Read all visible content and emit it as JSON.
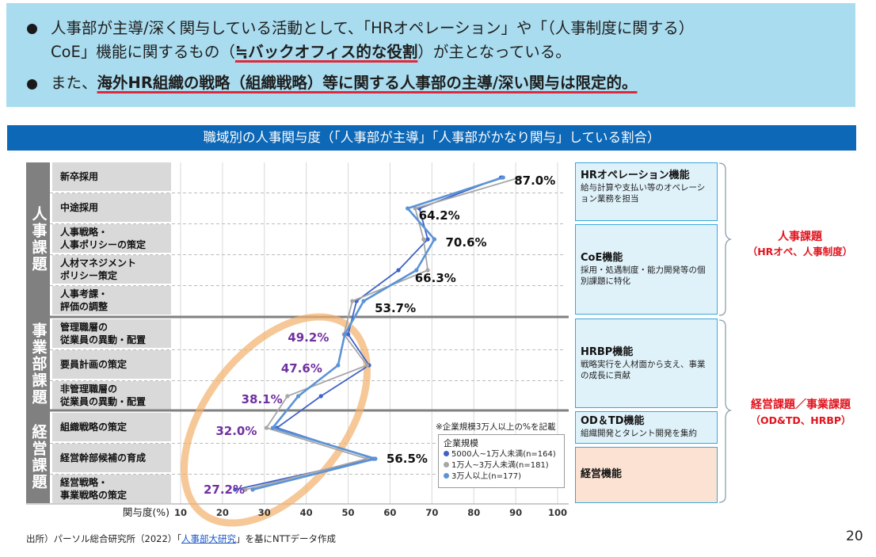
{
  "summary": {
    "bullet1_line1": "人事部が主導/深く関与している活動として、「HRオペレーション」や「（人事制度に関する）",
    "bullet1_line2_pre": "CoE」機能に関するもの（",
    "bullet1_line2_em": "≒バックオフィス的な役割",
    "bullet1_line2_post": "）が主となっている。",
    "bullet2_pre": "また、",
    "bullet2_em": "海外HR組織の戦略（組織戦略）等に関する人事部の主導/深い関与は限定的。"
  },
  "banner_title": "職域別の人事関与度（「人事部が主導」「人事部がかなり関与」している割合）",
  "groups": {
    "hr": "人事課題",
    "business": "事業部課題",
    "management": "経営課題"
  },
  "categories": [
    {
      "label": "新卒採用"
    },
    {
      "label": "中途採用"
    },
    {
      "label": "人事戦略・\n人事ポリシーの策定"
    },
    {
      "label": "人材マネジメント\nポリシー策定"
    },
    {
      "label": "人事考課・\n評価の調整"
    },
    {
      "label": "管理職層の\n従業員の異動・配置"
    },
    {
      "label": "要員計画の策定"
    },
    {
      "label": "非管理職層の\n従業員の異動・配置"
    },
    {
      "label": "組織戦略の策定"
    },
    {
      "label": "経営幹部候補の育成"
    },
    {
      "label": "経営戦略・\n事業戦略の策定"
    }
  ],
  "chart_data": {
    "type": "line",
    "orientation": "horizontal",
    "x_axis_label": "関与度(%)",
    "x_ticks": [
      "10",
      "20",
      "30",
      "40",
      "50",
      "60",
      "70",
      "80",
      "90",
      "100"
    ],
    "xlim": [
      10,
      100
    ],
    "grid": true,
    "categories": [
      "新卒採用",
      "中途採用",
      "人事戦略・人事ポリシーの策定",
      "人材マネジメントポリシー策定",
      "人事考課・評価の調整",
      "管理職層の従業員の異動・配置",
      "要員計画の策定",
      "非管理職層の従業員の異動・配置",
      "組織戦略の策定",
      "経営幹部候補の育成",
      "経営戦略・事業戦略の策定"
    ],
    "series": [
      {
        "name": "5000人~1万人未満(n=164)",
        "color": "#3f62c8",
        "values": [
          86.5,
          67.0,
          69.0,
          62.0,
          52.0,
          50.0,
          55.0,
          43.5,
          33.0,
          56.0,
          23.0
        ]
      },
      {
        "name": "1万人~3万人未満(n=181)",
        "color": "#a6a6a6",
        "values": [
          91.0,
          66.0,
          68.0,
          69.0,
          51.0,
          49.0,
          54.5,
          35.5,
          30.5,
          54.5,
          25.5
        ]
      },
      {
        "name": "3万人以上(n=177)",
        "color": "#5b93d6",
        "values": [
          87.0,
          64.2,
          70.6,
          66.3,
          53.7,
          49.2,
          47.6,
          38.1,
          32.0,
          56.5,
          27.2
        ]
      }
    ],
    "data_labels": [
      "87.0%",
      "64.2%",
      "70.6%",
      "66.3%",
      "53.7%",
      "49.2%",
      "47.6%",
      "38.1%",
      "32.0%",
      "56.5%",
      "27.2%"
    ],
    "data_label_colors": [
      "#111111",
      "#111111",
      "#111111",
      "#111111",
      "#111111",
      "#7030a0",
      "#7030a0",
      "#7030a0",
      "#7030a0",
      "#111111",
      "#7030a0"
    ]
  },
  "note": "※企業規模3万人以上の%を記載",
  "legend": {
    "title": "企業規模",
    "items": [
      {
        "label": "5000人~1万人未満(n=164)",
        "color": "#3f62c8"
      },
      {
        "label": "1万人~3万人未満(n=181)",
        "color": "#a6a6a6"
      },
      {
        "label": "3万人以上(n=177)",
        "color": "#5b93d6"
      }
    ]
  },
  "functions": [
    {
      "title": "HRオペレーション機能",
      "desc": "給与計算や支払い等のオペレーション業務を担当"
    },
    {
      "title": "CoE機能",
      "desc": "採用・処遇制度・能力開発等の個別課題に特化"
    },
    {
      "title": "HRBP機能",
      "desc": "戦略実行を人材面から支え、事業の成長に貢献"
    },
    {
      "title": "OD＆TD機能",
      "desc": "組織開発とタレント開発を集約"
    },
    {
      "title": "経営機能",
      "desc": ""
    }
  ],
  "right_labels": {
    "hr_title": "人事課題",
    "hr_sub": "（HRオペ、人事制度）",
    "biz_title": "経営課題／事業課題",
    "biz_sub": "（OD&TD、HRBP）"
  },
  "source": {
    "pre": "出所）パーソル総合研究所（2022）「",
    "link": "人事部大研究",
    "post": "」を基にNTTデータ作成"
  },
  "page_number": "20",
  "colors": {
    "banner": "#0d68b7",
    "summary_bg": "#a9dcef",
    "highlight_oval": "#f4b06b",
    "accent_red": "#e0141e"
  }
}
